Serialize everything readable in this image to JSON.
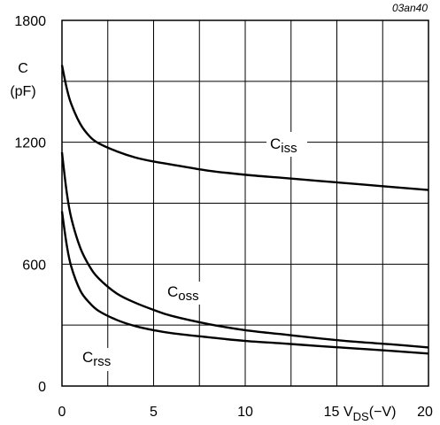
{
  "chart_data": {
    "type": "line",
    "figure_code": "03an40",
    "ylabel_line1": "C",
    "ylabel_line2": "(pF)",
    "xlabel_prefix": "V",
    "xlabel_sub": "DS",
    "xlabel_suffix": "(−V)",
    "xlim": [
      0,
      20
    ],
    "ylim": [
      0,
      1800
    ],
    "x_ticks": [
      0,
      5,
      10,
      15,
      20
    ],
    "x_tick_labels": [
      "0",
      "5",
      "10",
      "15",
      "20"
    ],
    "y_ticks": [
      0,
      600,
      1200,
      1800
    ],
    "y_tick_labels": [
      "0",
      "600",
      "1200",
      "1800"
    ],
    "grid": true,
    "series": [
      {
        "name_main": "C",
        "name_sub": "iss",
        "x": [
          0,
          0.25,
          0.5,
          1,
          1.5,
          2,
          3,
          4,
          5,
          6,
          8,
          10,
          12,
          14,
          16,
          18,
          20
        ],
        "y": [
          1580,
          1470,
          1390,
          1290,
          1230,
          1195,
          1155,
          1125,
          1105,
          1090,
          1060,
          1040,
          1025,
          1010,
          995,
          980,
          965
        ]
      },
      {
        "name_main": "C",
        "name_sub": "oss",
        "x": [
          0,
          0.25,
          0.5,
          1,
          1.5,
          2,
          3,
          4,
          5,
          6,
          8,
          10,
          12,
          14,
          16,
          18,
          20
        ],
        "y": [
          1150,
          960,
          830,
          680,
          590,
          530,
          455,
          410,
          375,
          345,
          305,
          275,
          255,
          235,
          218,
          205,
          190
        ]
      },
      {
        "name_main": "C",
        "name_sub": "rss",
        "x": [
          0,
          0.25,
          0.5,
          1,
          1.5,
          2,
          3,
          4,
          5,
          6,
          8,
          10,
          12,
          14,
          16,
          18,
          20
        ],
        "y": [
          860,
          700,
          590,
          470,
          410,
          370,
          325,
          295,
          275,
          260,
          240,
          222,
          210,
          197,
          185,
          173,
          160
        ]
      }
    ]
  }
}
